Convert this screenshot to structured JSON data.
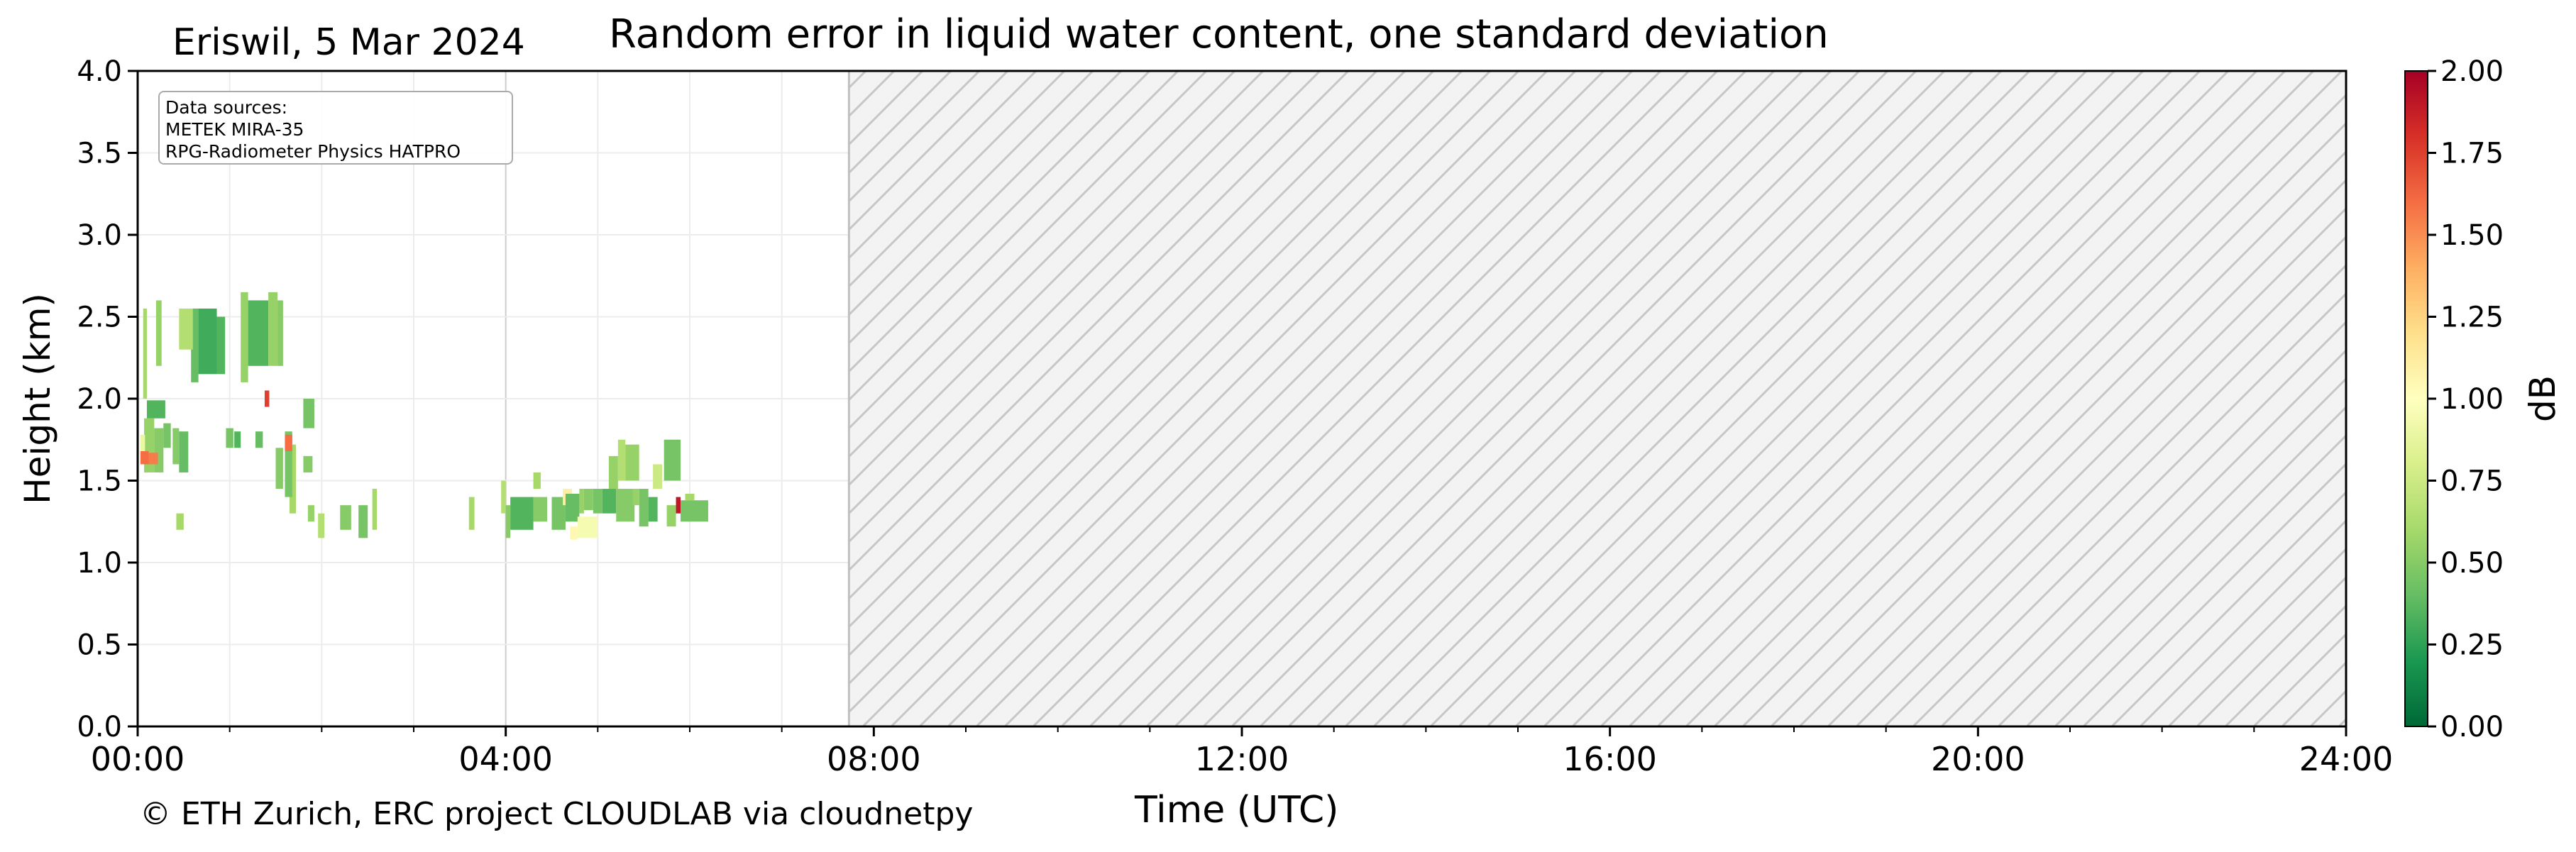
{
  "chart_data": {
    "type": "heatmap",
    "title": "Random error in liquid water content, one standard deviation",
    "site_label": "Eriswil, 5 Mar 2024",
    "xlabel": "Time (UTC)",
    "ylabel": "Height (km)",
    "xlim": [
      0,
      24
    ],
    "ylim": [
      0,
      4
    ],
    "x_ticks": [
      0,
      4,
      8,
      12,
      16,
      20,
      24
    ],
    "x_tick_labels": [
      "00:00",
      "04:00",
      "08:00",
      "12:00",
      "16:00",
      "20:00",
      "24:00"
    ],
    "y_ticks": [
      0,
      0.5,
      1,
      1.5,
      2,
      2.5,
      3,
      3.5,
      4
    ],
    "y_tick_labels": [
      "0.0",
      "0.5",
      "1.0",
      "1.5",
      "2.0",
      "2.5",
      "3.0",
      "3.5",
      "4.0"
    ],
    "grid": true,
    "colorbar": {
      "label": "dB",
      "range": [
        0,
        2
      ],
      "ticks": [
        0,
        0.25,
        0.5,
        0.75,
        1,
        1.25,
        1.5,
        1.75,
        2
      ],
      "tick_labels": [
        "0.00",
        "0.25",
        "0.50",
        "0.75",
        "1.00",
        "1.25",
        "1.50",
        "1.75",
        "2.00"
      ],
      "colormap": "RdYlGn_r"
    },
    "no_data_region": {
      "x_start": 7.73,
      "x_end": 24,
      "pattern": "hatched"
    },
    "data_sources": {
      "heading": "Data sources:",
      "items": [
        "METEK MIRA-35",
        "RPG-Radiometer Physics HATPRO"
      ]
    },
    "copyright": "© ETH Zurich, ERC project CLOUDLAB via cloudnetpy",
    "cells": [
      [
        0.07,
        0.18,
        1.55,
        1.88,
        0.55
      ],
      [
        0.18,
        0.28,
        1.55,
        1.82,
        0.5
      ],
      [
        0.1,
        0.3,
        1.88,
        1.99,
        0.35
      ],
      [
        0.03,
        0.12,
        1.6,
        1.68,
        1.6
      ],
      [
        0.12,
        0.22,
        1.6,
        1.67,
        1.55
      ],
      [
        0.03,
        0.08,
        1.68,
        1.78,
        0.9
      ],
      [
        0.06,
        0.1,
        2.0,
        2.55,
        0.6
      ],
      [
        0.2,
        0.26,
        2.2,
        2.6,
        0.55
      ],
      [
        0.28,
        0.36,
        1.7,
        1.85,
        0.45
      ],
      [
        0.38,
        0.45,
        1.6,
        1.82,
        0.5
      ],
      [
        0.45,
        0.55,
        1.55,
        1.8,
        0.4
      ],
      [
        0.58,
        0.66,
        2.1,
        2.55,
        0.4
      ],
      [
        0.66,
        0.86,
        2.15,
        2.55,
        0.3
      ],
      [
        0.86,
        0.95,
        2.15,
        2.5,
        0.35
      ],
      [
        0.45,
        0.6,
        2.3,
        2.55,
        0.65
      ],
      [
        0.96,
        1.04,
        1.7,
        1.82,
        0.45
      ],
      [
        1.05,
        1.12,
        1.7,
        1.8,
        0.35
      ],
      [
        1.12,
        1.2,
        2.1,
        2.65,
        0.55
      ],
      [
        1.2,
        1.42,
        2.2,
        2.6,
        0.35
      ],
      [
        1.42,
        1.52,
        2.2,
        2.65,
        0.55
      ],
      [
        1.52,
        1.58,
        2.2,
        2.6,
        0.5
      ],
      [
        1.28,
        1.36,
        1.7,
        1.8,
        0.4
      ],
      [
        1.38,
        1.43,
        1.95,
        2.05,
        1.75
      ],
      [
        1.65,
        1.72,
        1.3,
        1.72,
        0.6
      ],
      [
        1.5,
        1.58,
        1.45,
        1.7,
        0.5
      ],
      [
        1.6,
        1.68,
        1.4,
        1.8,
        0.45
      ],
      [
        1.6,
        1.68,
        1.68,
        1.78,
        1.6
      ],
      [
        1.8,
        1.92,
        1.82,
        2.0,
        0.45
      ],
      [
        1.8,
        1.9,
        1.55,
        1.65,
        0.5
      ],
      [
        1.85,
        1.92,
        1.25,
        1.35,
        0.55
      ],
      [
        1.96,
        2.03,
        1.15,
        1.3,
        0.65
      ],
      [
        2.2,
        2.32,
        1.2,
        1.35,
        0.5
      ],
      [
        2.4,
        2.5,
        1.15,
        1.35,
        0.45
      ],
      [
        2.55,
        2.6,
        1.2,
        1.45,
        0.6
      ],
      [
        0.42,
        0.5,
        1.2,
        1.3,
        0.6
      ],
      [
        3.6,
        3.66,
        1.2,
        1.4,
        0.6
      ],
      [
        3.95,
        4.0,
        1.3,
        1.5,
        0.65
      ],
      [
        4.0,
        4.05,
        1.15,
        1.35,
        0.5
      ],
      [
        4.05,
        4.3,
        1.2,
        1.4,
        0.35
      ],
      [
        4.3,
        4.45,
        1.25,
        1.4,
        0.5
      ],
      [
        4.5,
        4.65,
        1.2,
        1.4,
        0.45
      ],
      [
        4.62,
        4.72,
        1.35,
        1.45,
        1.1
      ],
      [
        4.65,
        4.8,
        1.25,
        1.42,
        0.4
      ],
      [
        4.8,
        4.85,
        1.3,
        1.45,
        0.55
      ],
      [
        4.85,
        4.95,
        1.32,
        1.45,
        0.5
      ],
      [
        4.95,
        5.05,
        1.3,
        1.45,
        0.45
      ],
      [
        4.78,
        5.0,
        1.15,
        1.28,
        0.95
      ],
      [
        4.7,
        4.78,
        1.14,
        1.22,
        1.05
      ],
      [
        5.05,
        5.2,
        1.3,
        1.45,
        0.35
      ],
      [
        5.2,
        5.4,
        1.25,
        1.45,
        0.5
      ],
      [
        5.12,
        5.22,
        1.45,
        1.65,
        0.55
      ],
      [
        5.22,
        5.3,
        1.5,
        1.75,
        0.65
      ],
      [
        5.3,
        5.45,
        1.5,
        1.72,
        0.55
      ],
      [
        5.45,
        5.55,
        1.22,
        1.45,
        0.45
      ],
      [
        5.55,
        5.65,
        1.25,
        1.4,
        0.35
      ],
      [
        5.72,
        5.9,
        1.5,
        1.75,
        0.45
      ],
      [
        5.6,
        5.7,
        1.45,
        1.6,
        0.75
      ],
      [
        5.75,
        5.85,
        1.22,
        1.35,
        0.55
      ],
      [
        5.85,
        5.9,
        1.3,
        1.4,
        1.9
      ],
      [
        5.9,
        6.2,
        1.25,
        1.38,
        0.45
      ],
      [
        5.95,
        6.05,
        1.38,
        1.42,
        0.6
      ],
      [
        4.3,
        4.38,
        1.45,
        1.55,
        0.6
      ],
      [
        5.38,
        5.45,
        1.35,
        1.45,
        0.55
      ]
    ]
  }
}
